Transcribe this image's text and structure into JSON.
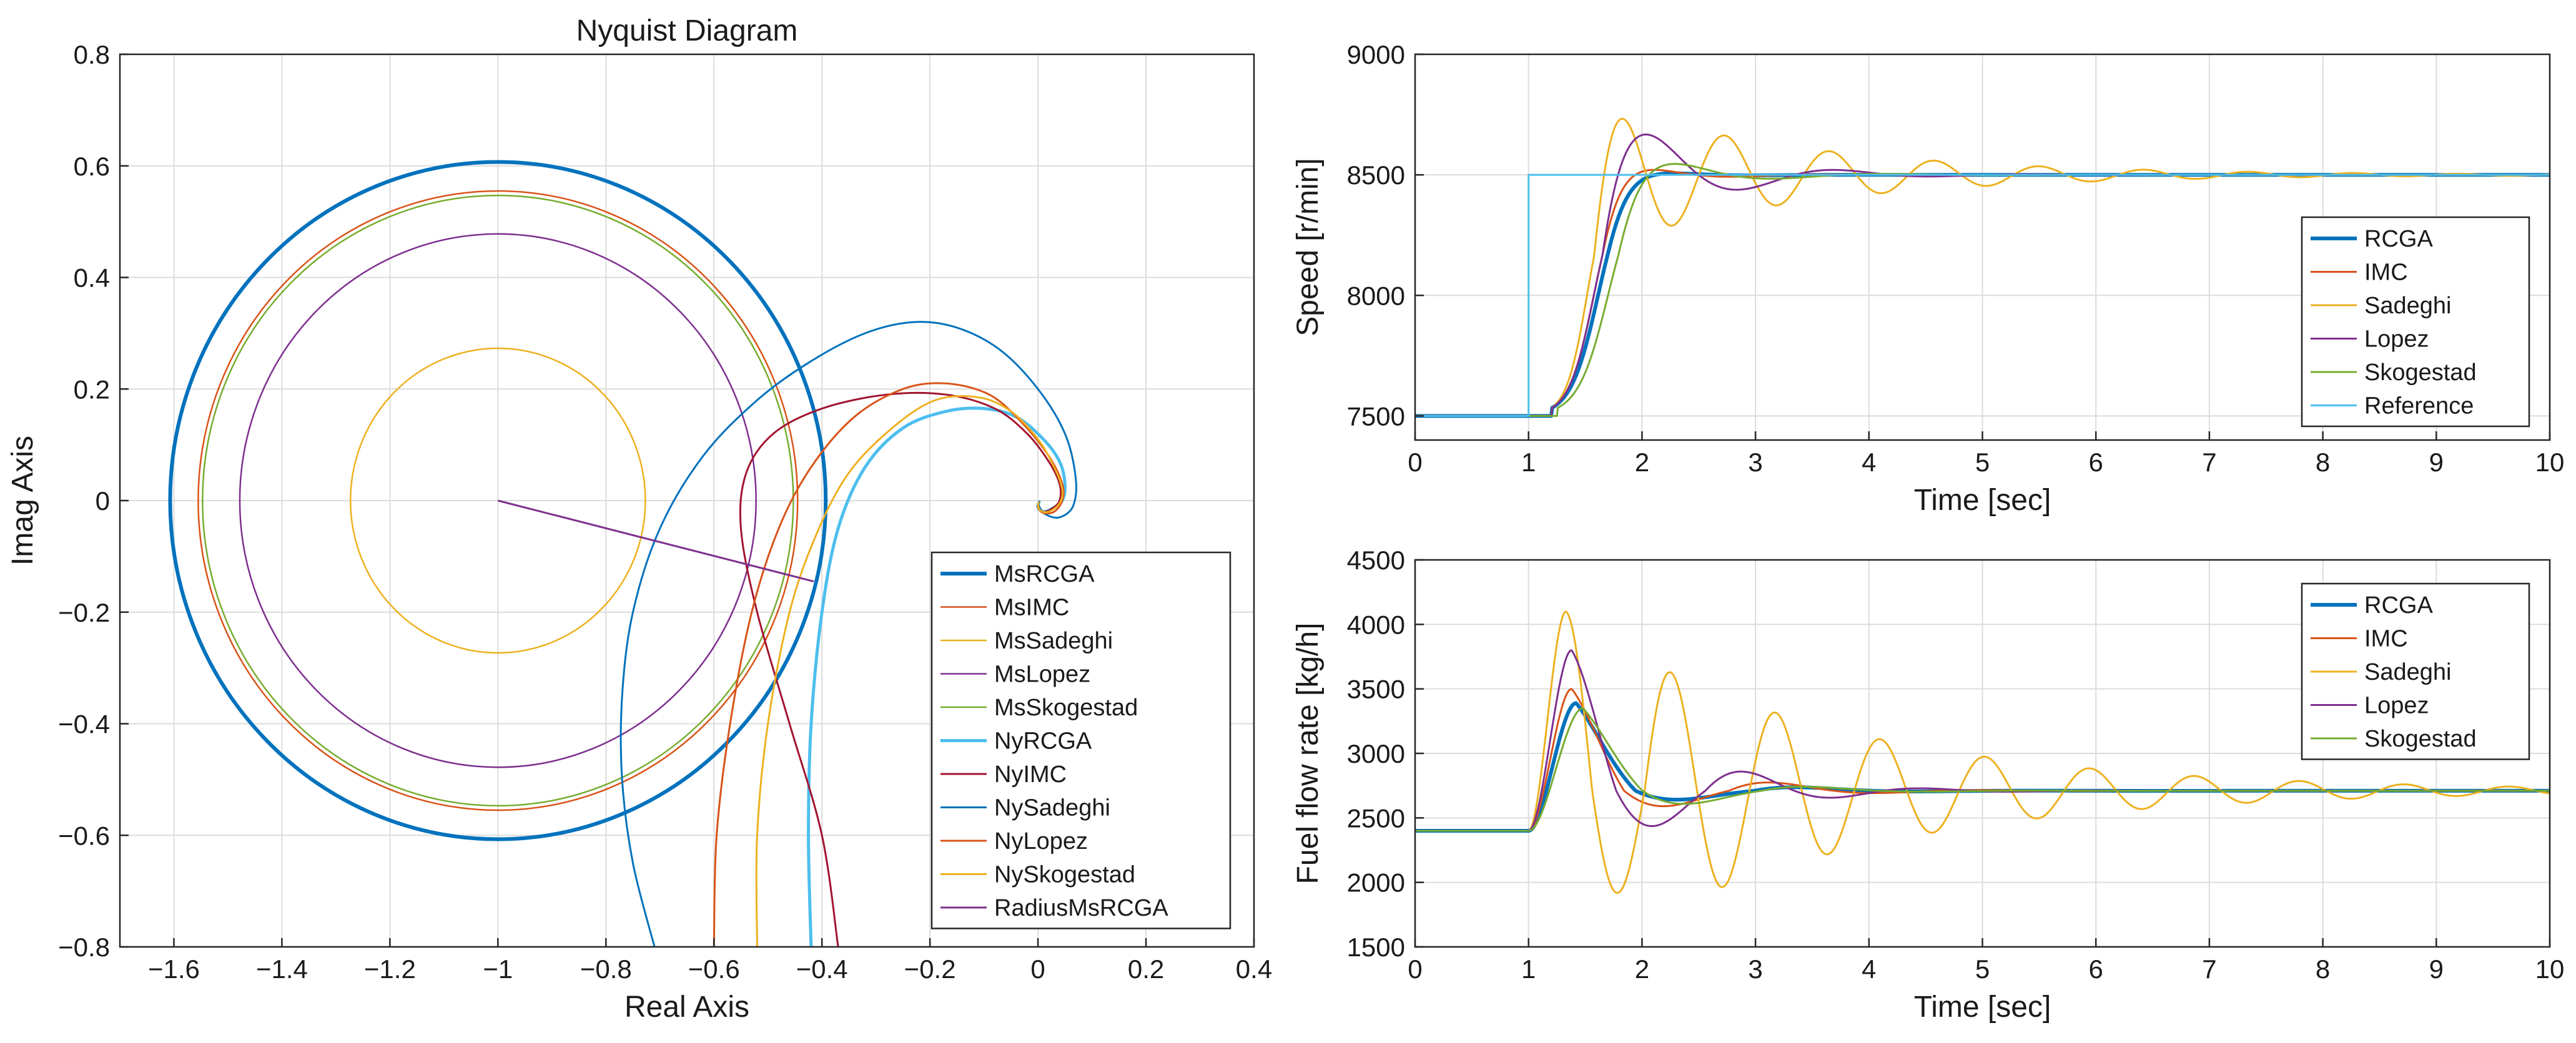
{
  "chart_data": [
    {
      "id": "nyquist",
      "type": "line",
      "title": "Nyquist Diagram",
      "xlabel": "Real Axis",
      "ylabel": "Imag Axis",
      "xlim": [
        -1.7,
        0.4
      ],
      "ylim": [
        -0.8,
        0.8
      ],
      "grid": true,
      "legend_position": "bottom-right",
      "xticks": [
        -1.6,
        -1.4,
        -1.2,
        -1,
        -0.8,
        -0.6,
        -0.4,
        -0.2,
        0,
        0.2,
        0.4
      ],
      "xtick_labels": [
        "−1.6",
        "−1.4",
        "−1.2",
        "−1",
        "−0.8",
        "−0.6",
        "−0.4",
        "−0.2",
        "0",
        "0.2",
        "0.4"
      ],
      "yticks": [
        -0.8,
        -0.6,
        -0.4,
        -0.2,
        0,
        0.2,
        0.4,
        0.6,
        0.8
      ],
      "ytick_labels": [
        "−0.8",
        "−0.6",
        "−0.4",
        "−0.2",
        "0",
        "0.2",
        "0.4",
        "0.6",
        "0.8"
      ],
      "series": [
        {
          "name": "MsRCGA",
          "kind": "circle",
          "center": [
            -1,
            0
          ],
          "radius": 0.607,
          "color": "#0072BD",
          "width": 6
        },
        {
          "name": "MsIMC",
          "kind": "circle",
          "center": [
            -1,
            0
          ],
          "radius": 0.555,
          "color": "#D95319",
          "width": 2.5
        },
        {
          "name": "MsSadeghi",
          "kind": "circle",
          "center": [
            -1,
            0
          ],
          "radius": 0.273,
          "color": "#EDB120",
          "width": 2.5
        },
        {
          "name": "MsLopez",
          "kind": "circle",
          "center": [
            -1,
            0
          ],
          "radius": 0.478,
          "color": "#7E2F8E",
          "width": 2.5
        },
        {
          "name": "MsSkogestad",
          "kind": "circle",
          "center": [
            -1,
            0
          ],
          "radius": 0.547,
          "color": "#77AC30",
          "width": 2.5
        },
        {
          "name": "NyRCGA",
          "kind": "curve",
          "color": "#4DBEEE",
          "width": 5,
          "points": [
            [
              -0.42,
              -0.8
            ],
            [
              -0.425,
              -0.6
            ],
            [
              -0.42,
              -0.4
            ],
            [
              -0.4,
              -0.2
            ],
            [
              -0.37,
              -0.05
            ],
            [
              -0.32,
              0.06
            ],
            [
              -0.25,
              0.13
            ],
            [
              -0.17,
              0.16
            ],
            [
              -0.1,
              0.165
            ],
            [
              -0.04,
              0.15
            ],
            [
              0.01,
              0.11
            ],
            [
              0.04,
              0.07
            ],
            [
              0.05,
              0.03
            ],
            [
              0.045,
              0.0
            ],
            [
              0.025,
              -0.015
            ],
            [
              0.01,
              -0.02
            ],
            [
              0.0,
              -0.012
            ],
            [
              0.002,
              -0.002
            ]
          ]
        },
        {
          "name": "NyIMC",
          "kind": "curve",
          "color": "#A2142F",
          "width": 3,
          "points": [
            [
              -0.37,
              -0.8
            ],
            [
              -0.4,
              -0.6
            ],
            [
              -0.46,
              -0.4
            ],
            [
              -0.52,
              -0.2
            ],
            [
              -0.55,
              -0.05
            ],
            [
              -0.54,
              0.05
            ],
            [
              -0.49,
              0.12
            ],
            [
              -0.4,
              0.165
            ],
            [
              -0.28,
              0.19
            ],
            [
              -0.17,
              0.19
            ],
            [
              -0.08,
              0.165
            ],
            [
              -0.02,
              0.12
            ],
            [
              0.02,
              0.07
            ],
            [
              0.04,
              0.03
            ],
            [
              0.04,
              0.0
            ],
            [
              0.025,
              -0.015
            ],
            [
              0.01,
              -0.02
            ],
            [
              0.0,
              -0.012
            ],
            [
              0.002,
              -0.002
            ]
          ]
        },
        {
          "name": "NySadeghi",
          "kind": "curve",
          "color": "#0072BD",
          "width": 3,
          "points": [
            [
              -0.71,
              -0.8
            ],
            [
              -0.75,
              -0.65
            ],
            [
              -0.77,
              -0.5
            ],
            [
              -0.77,
              -0.35
            ],
            [
              -0.75,
              -0.2
            ],
            [
              -0.7,
              -0.05
            ],
            [
              -0.62,
              0.08
            ],
            [
              -0.52,
              0.18
            ],
            [
              -0.42,
              0.25
            ],
            [
              -0.32,
              0.3
            ],
            [
              -0.23,
              0.32
            ],
            [
              -0.15,
              0.31
            ],
            [
              -0.07,
              0.27
            ],
            [
              0.0,
              0.2
            ],
            [
              0.05,
              0.12
            ],
            [
              0.07,
              0.04
            ],
            [
              0.065,
              -0.01
            ],
            [
              0.04,
              -0.03
            ],
            [
              0.015,
              -0.025
            ],
            [
              0.002,
              -0.01
            ],
            [
              0.003,
              0.0
            ]
          ]
        },
        {
          "name": "NyLopez",
          "kind": "curve",
          "color": "#D95319",
          "width": 3,
          "points": [
            [
              -0.6,
              -0.8
            ],
            [
              -0.595,
              -0.6
            ],
            [
              -0.57,
              -0.4
            ],
            [
              -0.53,
              -0.2
            ],
            [
              -0.48,
              -0.05
            ],
            [
              -0.42,
              0.06
            ],
            [
              -0.34,
              0.15
            ],
            [
              -0.25,
              0.2
            ],
            [
              -0.17,
              0.21
            ],
            [
              -0.09,
              0.19
            ],
            [
              -0.03,
              0.14
            ],
            [
              0.02,
              0.08
            ],
            [
              0.045,
              0.03
            ],
            [
              0.045,
              0.0
            ],
            [
              0.03,
              -0.02
            ],
            [
              0.01,
              -0.022
            ],
            [
              0.0,
              -0.012
            ],
            [
              0.002,
              -0.002
            ]
          ]
        },
        {
          "name": "NySkogestad",
          "kind": "curve",
          "color": "#EDB120",
          "width": 3,
          "points": [
            [
              -0.52,
              -0.8
            ],
            [
              -0.52,
              -0.6
            ],
            [
              -0.5,
              -0.4
            ],
            [
              -0.46,
              -0.2
            ],
            [
              -0.41,
              -0.06
            ],
            [
              -0.35,
              0.05
            ],
            [
              -0.27,
              0.13
            ],
            [
              -0.19,
              0.18
            ],
            [
              -0.11,
              0.185
            ],
            [
              -0.05,
              0.16
            ],
            [
              0.0,
              0.11
            ],
            [
              0.03,
              0.06
            ],
            [
              0.045,
              0.02
            ],
            [
              0.04,
              -0.005
            ],
            [
              0.02,
              -0.02
            ],
            [
              0.005,
              -0.018
            ],
            [
              0.0,
              -0.008
            ],
            [
              0.002,
              -0.002
            ]
          ]
        },
        {
          "name": "RadiusMsRCGA",
          "kind": "curve",
          "color": "#7E2F8E",
          "width": 3,
          "points": [
            [
              -1,
              0
            ],
            [
              -0.415,
              -0.145
            ]
          ]
        }
      ]
    },
    {
      "id": "speed",
      "type": "line",
      "title": "",
      "xlabel": "Time [sec]",
      "ylabel": "Speed [r/min]",
      "xlim": [
        0,
        10
      ],
      "ylim": [
        7400,
        9000
      ],
      "grid": true,
      "legend_position": "right",
      "xticks": [
        0,
        1,
        2,
        3,
        4,
        5,
        6,
        7,
        8,
        9,
        10
      ],
      "xtick_labels": [
        "0",
        "1",
        "2",
        "3",
        "4",
        "5",
        "6",
        "7",
        "8",
        "9",
        "10"
      ],
      "yticks": [
        7500,
        8000,
        8500,
        9000
      ],
      "ytick_labels": [
        "7500",
        "8000",
        "8500",
        "9000"
      ],
      "series": [
        {
          "name": "RCGA",
          "color": "#0072BD",
          "width": 6,
          "response": {
            "y0": 7500,
            "y1": 8500,
            "t0": 1.2,
            "tr": 0.55,
            "peak": 35,
            "freq": 3.2,
            "damp": 2.2
          }
        },
        {
          "name": "IMC",
          "color": "#D95319",
          "width": 3,
          "response": {
            "y0": 7500,
            "y1": 8500,
            "t0": 1.2,
            "tr": 0.5,
            "peak": 60,
            "freq": 3.8,
            "damp": 1.8
          }
        },
        {
          "name": "Sadeghi",
          "color": "#EDB120",
          "width": 3,
          "response": {
            "y0": 7500,
            "y1": 8500,
            "t0": 1.2,
            "tr": 0.42,
            "peak": 300,
            "freq": 6.8,
            "damp": 0.55
          }
        },
        {
          "name": "Lopez",
          "color": "#7E2F8E",
          "width": 3,
          "response": {
            "y0": 7500,
            "y1": 8500,
            "t0": 1.2,
            "tr": 0.5,
            "peak": 285,
            "freq": 3.7,
            "damp": 1.3
          }
        },
        {
          "name": "Skogestad",
          "color": "#77AC30",
          "width": 3,
          "response": {
            "y0": 7500,
            "y1": 8500,
            "t0": 1.25,
            "tr": 0.6,
            "peak": 105,
            "freq": 3.2,
            "damp": 1.4
          }
        },
        {
          "name": "Reference",
          "color": "#4DBEEE",
          "width": 3,
          "step": {
            "y0": 7500,
            "y1": 8500,
            "t": 1.0
          }
        }
      ]
    },
    {
      "id": "fuel",
      "type": "line",
      "title": "",
      "xlabel": "Time [sec]",
      "ylabel": "Fuel flow rate [kg/h]",
      "xlim": [
        0,
        10
      ],
      "ylim": [
        1500,
        4500
      ],
      "grid": true,
      "legend_position": "right",
      "xticks": [
        0,
        1,
        2,
        3,
        4,
        5,
        6,
        7,
        8,
        9,
        10
      ],
      "xtick_labels": [
        "0",
        "1",
        "2",
        "3",
        "4",
        "5",
        "6",
        "7",
        "8",
        "9",
        "10"
      ],
      "yticks": [
        1500,
        2000,
        2500,
        3000,
        3500,
        4000,
        4500
      ],
      "ytick_labels": [
        "1500",
        "2000",
        "2500",
        "3000",
        "3500",
        "4000",
        "4500"
      ],
      "series": [
        {
          "name": "RCGA",
          "color": "#0072BD",
          "width": 6,
          "pulse": {
            "base": 2400,
            "final": 2710,
            "t0": 1.0,
            "peak": 3390,
            "tpeak": 1.42,
            "under": 2650,
            "freq": 3.0,
            "damp": 1.6
          }
        },
        {
          "name": "IMC",
          "color": "#D95319",
          "width": 3,
          "pulse": {
            "base": 2400,
            "final": 2710,
            "t0": 1.0,
            "peak": 3500,
            "tpeak": 1.38,
            "under": 2600,
            "freq": 3.4,
            "damp": 1.4
          }
        },
        {
          "name": "Sadeghi",
          "color": "#EDB120",
          "width": 3,
          "pulse": {
            "base": 2400,
            "final": 2710,
            "t0": 1.0,
            "peak": 4100,
            "tpeak": 1.33,
            "under": 1920,
            "freq": 6.8,
            "damp": 0.45
          }
        },
        {
          "name": "Lopez",
          "color": "#7E2F8E",
          "width": 3,
          "pulse": {
            "base": 2400,
            "final": 2710,
            "t0": 1.0,
            "peak": 3800,
            "tpeak": 1.38,
            "under": 2450,
            "freq": 4.0,
            "damp": 1.3
          }
        },
        {
          "name": "Skogestad",
          "color": "#77AC30",
          "width": 3,
          "pulse": {
            "base": 2400,
            "final": 2710,
            "t0": 1.0,
            "peak": 3350,
            "tpeak": 1.48,
            "under": 2620,
            "freq": 3.0,
            "damp": 1.5
          }
        }
      ]
    }
  ]
}
